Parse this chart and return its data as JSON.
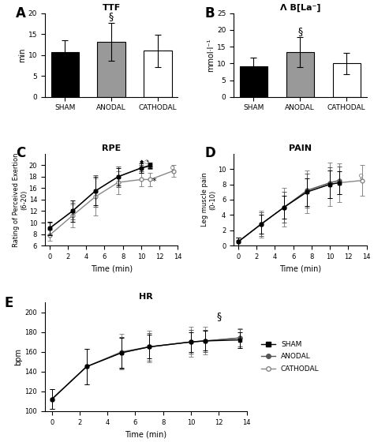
{
  "bar_A": {
    "categories": [
      "SHAM",
      "ANODAL",
      "CATHODAL"
    ],
    "values": [
      10.8,
      13.2,
      11.0
    ],
    "errors": [
      2.8,
      4.5,
      3.8
    ],
    "colors": [
      "black",
      "#999999",
      "white"
    ],
    "ylabel": "min",
    "title": "TTF",
    "ylim": [
      0,
      20
    ],
    "yticks": [
      0,
      5,
      10,
      15,
      20
    ]
  },
  "bar_B": {
    "categories": [
      "SHAM",
      "ANODAL",
      "CATHODAL"
    ],
    "values": [
      9.2,
      13.3,
      10.0
    ],
    "errors": [
      2.5,
      4.5,
      3.2
    ],
    "colors": [
      "black",
      "#999999",
      "white"
    ],
    "ylabel": "mmol·l⁻¹",
    "title": "Λ B[La⁻]",
    "ylim": [
      0,
      25
    ],
    "yticks": [
      0,
      5,
      10,
      15,
      20,
      25
    ]
  },
  "line_C": {
    "title": "RPE",
    "xlabel": "Time (min)",
    "ylabel": "Rating of Perceived Exertion\n(6-20)",
    "ylim": [
      6,
      22
    ],
    "yticks": [
      6,
      8,
      10,
      12,
      14,
      16,
      18,
      20
    ],
    "xlim": [
      -0.5,
      14
    ],
    "xticks": [
      0,
      2,
      4,
      6,
      8,
      10,
      12,
      14
    ],
    "sham_x": [
      0,
      2.5,
      5,
      7.5,
      10,
      11
    ],
    "sham_y": [
      9.0,
      12.0,
      15.5,
      18.0,
      19.5,
      20.0
    ],
    "sham_err": [
      1.2,
      1.8,
      2.5,
      1.5,
      0.8,
      0.5
    ],
    "anodal_x": [
      0,
      2.5,
      5,
      7.5,
      10,
      11
    ],
    "anodal_y": [
      9.0,
      12.0,
      15.5,
      18.0,
      19.5,
      19.8
    ],
    "anodal_err": [
      1.0,
      1.5,
      2.8,
      1.8,
      0.6,
      0.4
    ],
    "cathodal_x": [
      0,
      2.5,
      5,
      7.5,
      10,
      11,
      13.5
    ],
    "cathodal_y": [
      7.8,
      11.2,
      14.5,
      17.0,
      17.5,
      17.5,
      19.0
    ],
    "cathodal_err": [
      1.0,
      2.0,
      3.2,
      2.0,
      1.2,
      1.2,
      1.0
    ]
  },
  "line_D": {
    "title": "PAIN",
    "xlabel": "Time (min)",
    "ylabel": "Leg muscle pain\n(0-10)",
    "ylim": [
      0,
      12
    ],
    "yticks": [
      0,
      2,
      4,
      6,
      8,
      10
    ],
    "xlim": [
      -0.5,
      14
    ],
    "xticks": [
      0,
      2,
      4,
      6,
      8,
      10,
      12,
      14
    ],
    "sham_x": [
      0,
      2.5,
      5,
      7.5,
      10,
      11
    ],
    "sham_y": [
      0.5,
      2.8,
      5.0,
      7.0,
      8.0,
      8.2
    ],
    "sham_err": [
      0.5,
      1.2,
      1.5,
      1.8,
      1.8,
      1.5
    ],
    "anodal_x": [
      0,
      2.5,
      5,
      7.5,
      10,
      11
    ],
    "anodal_y": [
      0.5,
      2.8,
      5.0,
      7.2,
      8.2,
      8.5
    ],
    "anodal_err": [
      0.5,
      1.5,
      2.0,
      2.2,
      2.0,
      1.8
    ],
    "cathodal_x": [
      0,
      2.5,
      5,
      7.5,
      10,
      11,
      13.5
    ],
    "cathodal_y": [
      0.5,
      2.8,
      5.0,
      7.0,
      8.0,
      8.2,
      8.5
    ],
    "cathodal_err": [
      0.5,
      1.8,
      2.5,
      2.8,
      2.8,
      2.5,
      2.0
    ]
  },
  "line_E": {
    "title": "HR",
    "xlabel": "Time (min)",
    "ylabel": "bpm",
    "ylim": [
      100,
      210
    ],
    "yticks": [
      100,
      120,
      140,
      160,
      180,
      200
    ],
    "xlim": [
      -0.5,
      14
    ],
    "xticks": [
      0,
      2,
      4,
      6,
      8,
      10,
      12,
      14
    ],
    "x": [
      0,
      2.5,
      5,
      7,
      10,
      11,
      13.5
    ],
    "sham_y": [
      112,
      145,
      159,
      165,
      170,
      171,
      172
    ],
    "sham_err": [
      10,
      18,
      15,
      12,
      10,
      10,
      8
    ],
    "anodal_y": [
      112,
      145,
      159,
      165,
      170,
      171,
      174
    ],
    "anodal_err": [
      10,
      18,
      16,
      14,
      12,
      11,
      9
    ],
    "cathodal_y": [
      112,
      145,
      160,
      165,
      170,
      171,
      174
    ],
    "cathodal_err": [
      10,
      18,
      18,
      16,
      15,
      14,
      10
    ],
    "legend_labels": [
      "SHAM",
      "ANODAL",
      "CATHODAL"
    ]
  }
}
